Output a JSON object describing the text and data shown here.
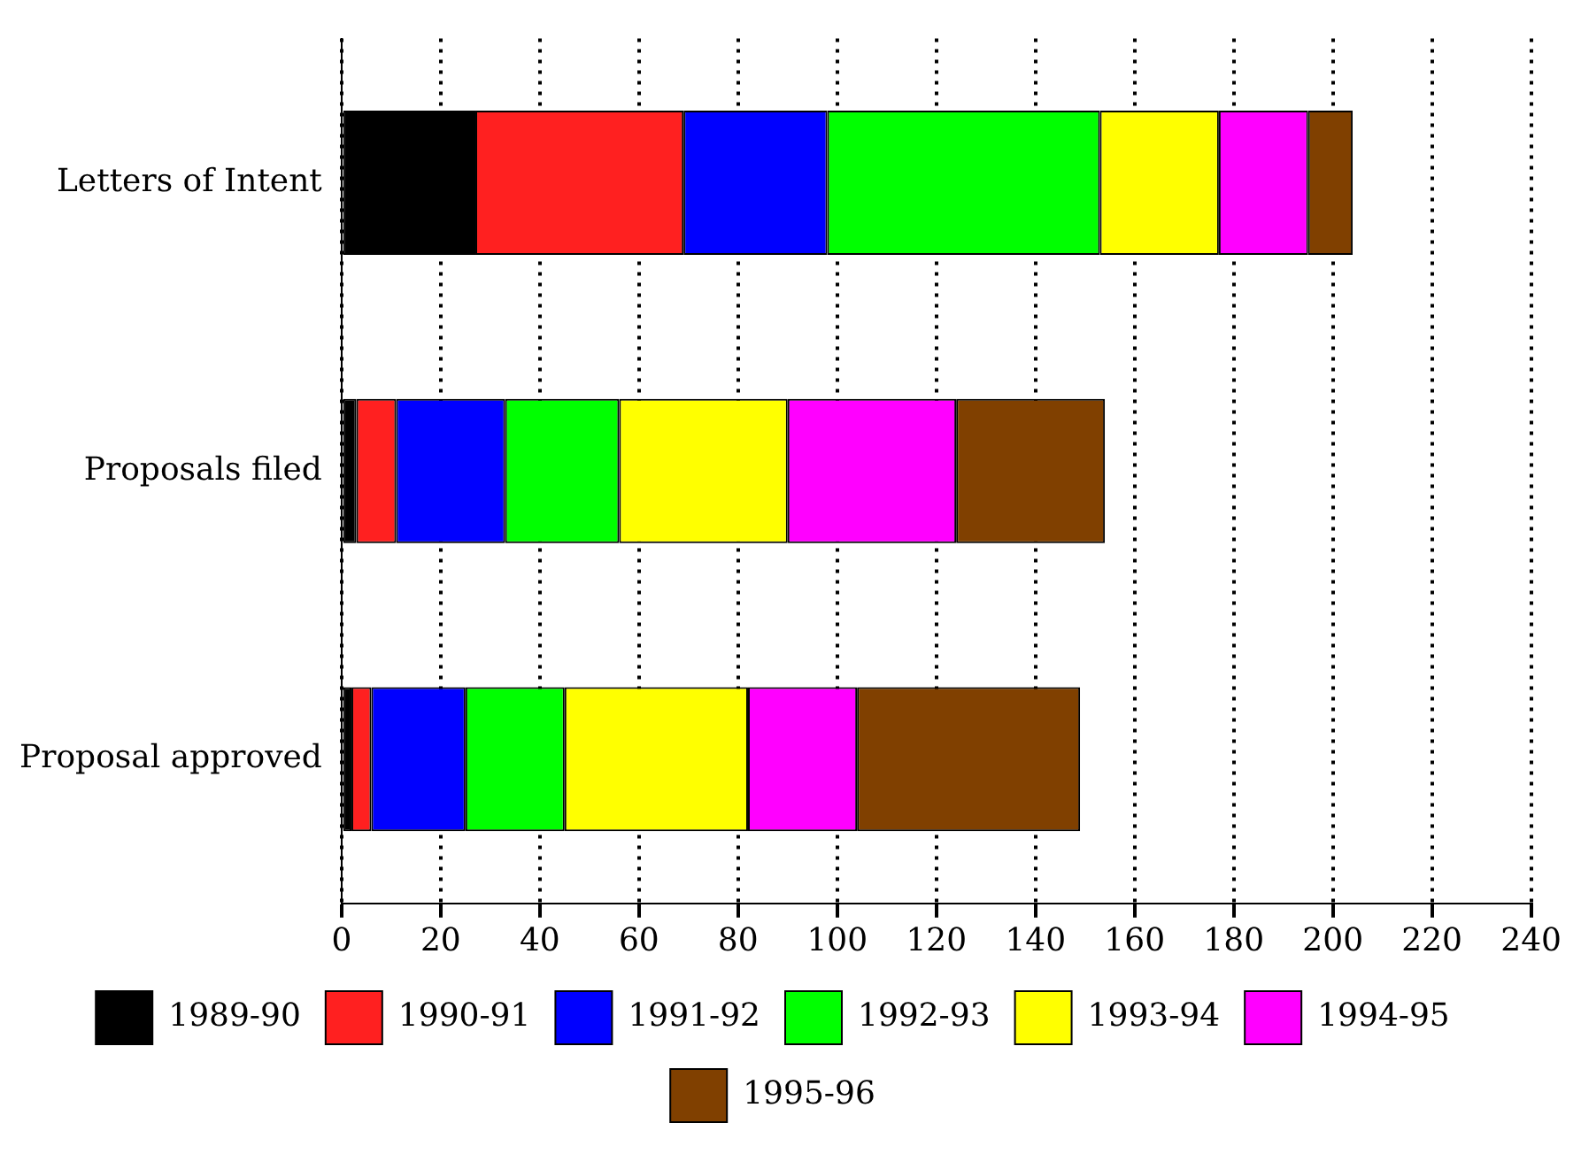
{
  "chart_data": {
    "type": "bar",
    "orientation": "horizontal",
    "stacked": true,
    "categories": [
      "Letters of Intent",
      "Proposals filed",
      "Proposal approved"
    ],
    "series": [
      {
        "name": "1989-90",
        "color": "#000000",
        "values": [
          27,
          3,
          2
        ]
      },
      {
        "name": "1990-91",
        "color": "#ff2020",
        "values": [
          42,
          8,
          4
        ]
      },
      {
        "name": "1991-92",
        "color": "#0000ff",
        "values": [
          29,
          22,
          19
        ]
      },
      {
        "name": "1992-93",
        "color": "#00ff00",
        "values": [
          55,
          23,
          20
        ]
      },
      {
        "name": "1993-94",
        "color": "#ffff00",
        "values": [
          24,
          34,
          37
        ]
      },
      {
        "name": "1994-95",
        "color": "#ff00ff",
        "values": [
          18,
          34,
          22
        ]
      },
      {
        "name": "1995-96",
        "color": "#804000",
        "values": [
          9,
          30,
          45
        ]
      }
    ],
    "xlim": [
      0,
      240
    ],
    "xticks": [
      0,
      20,
      40,
      60,
      80,
      100,
      120,
      140,
      160,
      180,
      200,
      220,
      240
    ],
    "grid": "x",
    "legend": "bottom"
  }
}
